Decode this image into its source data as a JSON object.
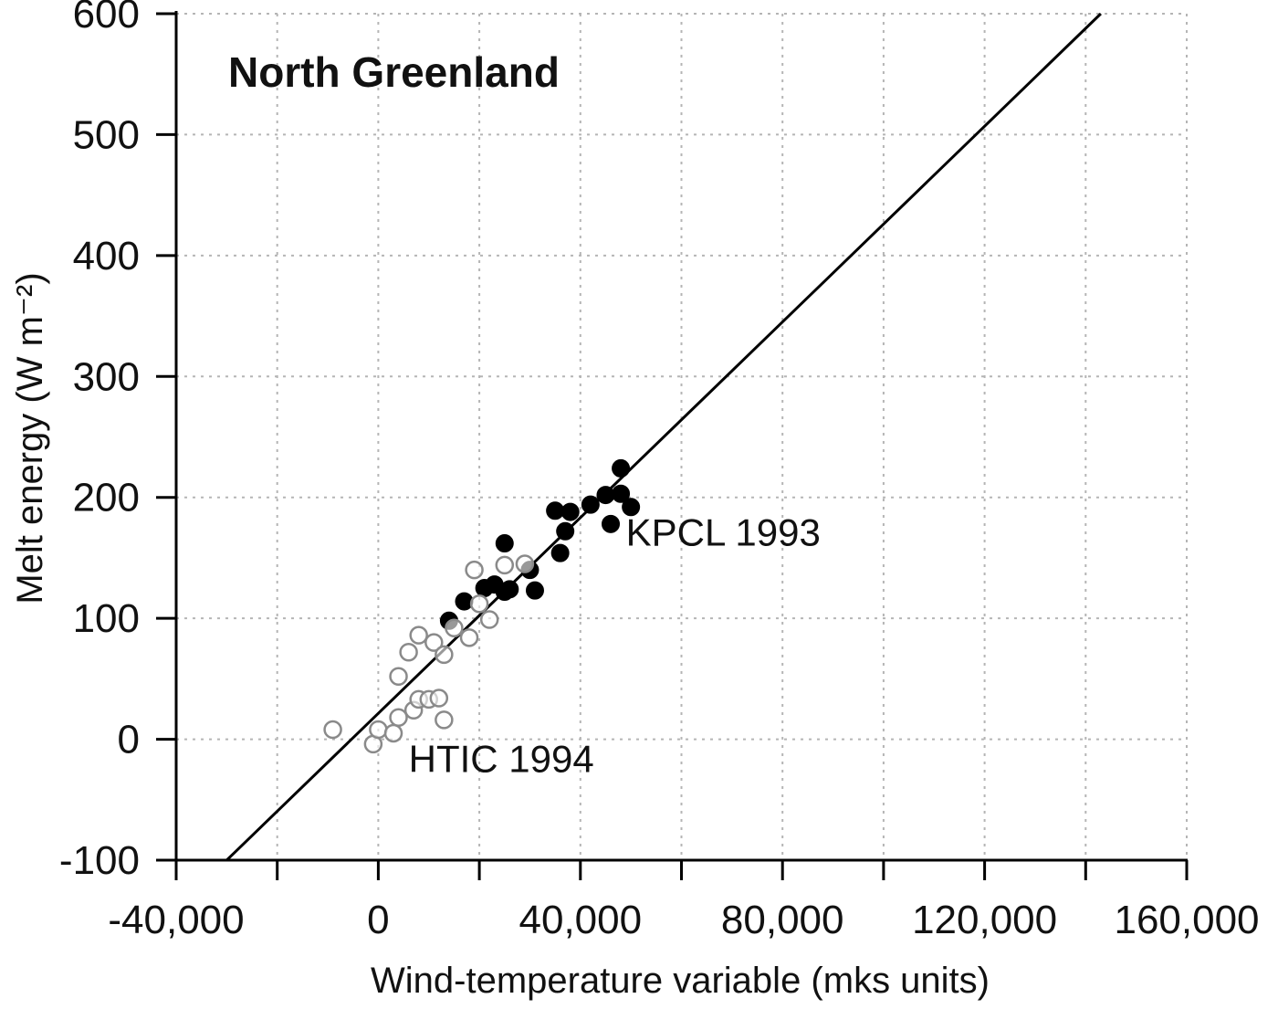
{
  "chart_data": {
    "type": "scatter",
    "title": "North Greenland",
    "xlabel": "Wind-temperature variable (mks units)",
    "ylabel": "Melt energy (W m⁻²)",
    "xlim": [
      -40000,
      160000
    ],
    "ylim": [
      -100,
      600
    ],
    "grid": true,
    "x_ticks": [
      -40000,
      0,
      40000,
      80000,
      120000,
      160000
    ],
    "x_tick_labels": [
      "-40,000",
      "0",
      "40,000",
      "80,000",
      "120,000",
      "160,000"
    ],
    "y_ticks": [
      -100,
      0,
      100,
      200,
      300,
      400,
      500,
      600
    ],
    "y_tick_labels": [
      "-100",
      "0",
      "100",
      "200",
      "300",
      "400",
      "500",
      "600"
    ],
    "annotations": [
      {
        "text": "KPCL 1993",
        "x": 49000,
        "y": 160
      },
      {
        "text": "HTIC 1994",
        "x": 6000,
        "y": -27
      }
    ],
    "series": [
      {
        "marker": "filled-circle",
        "color": "#000000",
        "points": [
          [
            14000,
            98
          ],
          [
            17000,
            114
          ],
          [
            21000,
            125
          ],
          [
            23000,
            128
          ],
          [
            25000,
            162
          ],
          [
            25000,
            122
          ],
          [
            26000,
            124
          ],
          [
            30000,
            140
          ],
          [
            31000,
            123
          ],
          [
            35000,
            189
          ],
          [
            36000,
            154
          ],
          [
            37000,
            172
          ],
          [
            38000,
            188
          ],
          [
            42000,
            194
          ],
          [
            45000,
            202
          ],
          [
            46000,
            178
          ],
          [
            48000,
            203
          ],
          [
            48000,
            224
          ],
          [
            50000,
            192
          ]
        ]
      },
      {
        "marker": "open-circle",
        "color": "#000000",
        "points": [
          [
            -9000,
            8
          ],
          [
            -1000,
            -4
          ],
          [
            0,
            8
          ],
          [
            3000,
            5
          ],
          [
            4000,
            18
          ],
          [
            4000,
            52
          ],
          [
            6000,
            72
          ],
          [
            7000,
            24
          ],
          [
            8000,
            86
          ],
          [
            8000,
            33
          ],
          [
            10000,
            33
          ],
          [
            11000,
            80
          ],
          [
            12000,
            34
          ],
          [
            13000,
            16
          ],
          [
            13000,
            70
          ],
          [
            15000,
            92
          ],
          [
            18000,
            84
          ],
          [
            19000,
            140
          ],
          [
            20000,
            112
          ],
          [
            22000,
            99
          ],
          [
            25000,
            144
          ],
          [
            29000,
            145
          ]
        ]
      }
    ],
    "fit_line": {
      "points": [
        [
          -30000,
          -100
        ],
        [
          143000,
          600
        ]
      ]
    }
  }
}
